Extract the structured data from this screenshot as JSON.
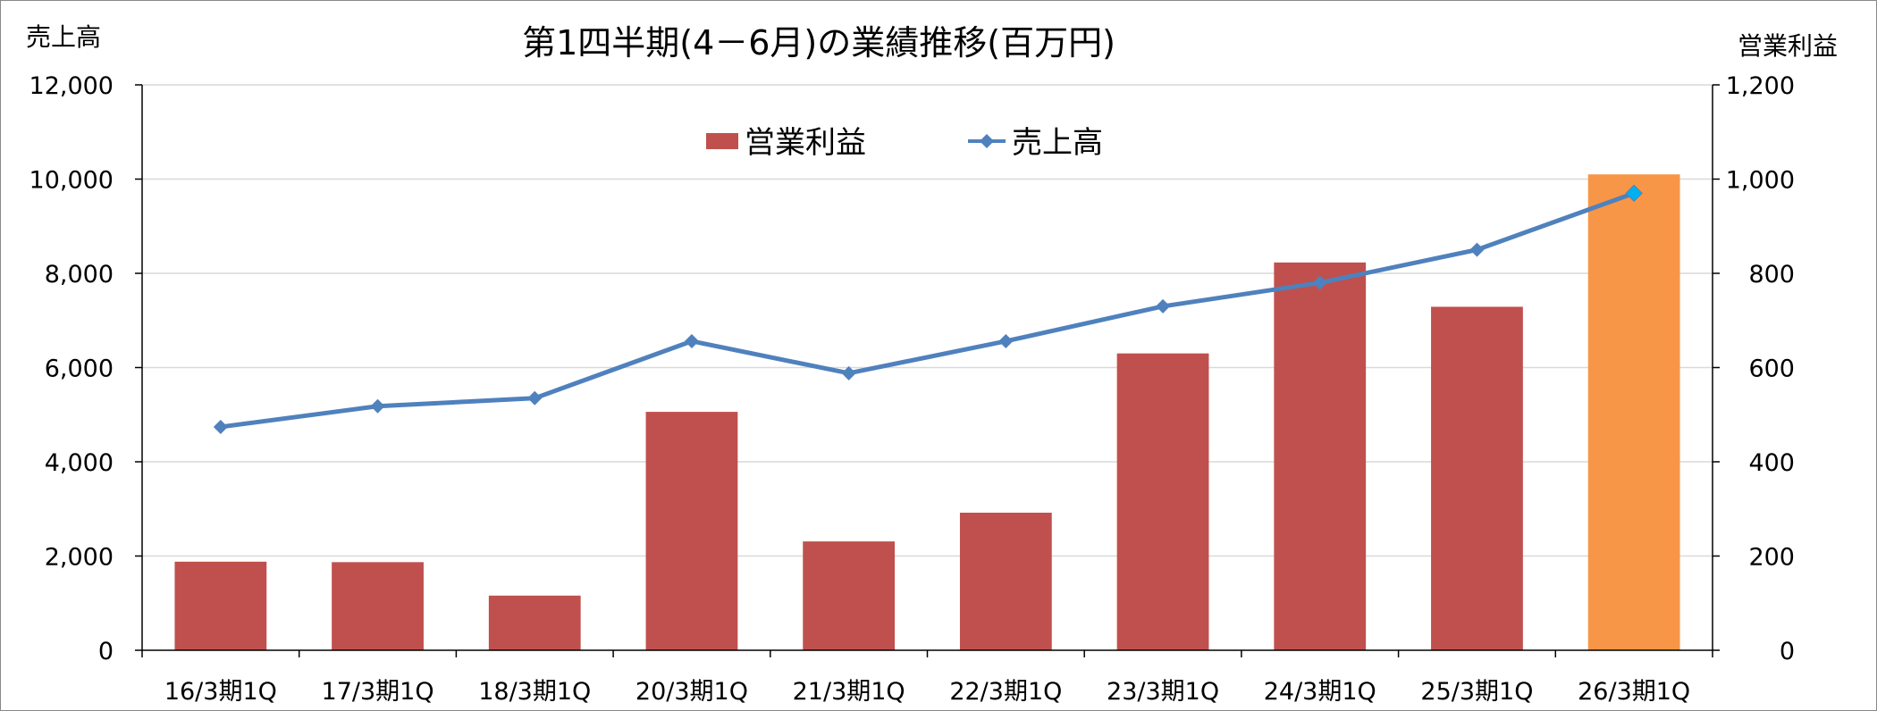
{
  "chart_data": {
    "type": "bar",
    "title": "第1四半期(4－6月)の業績推移(百万円)",
    "left_axis_title": "売上高",
    "right_axis_title": "営業利益",
    "categories": [
      "16/3期1Q",
      "17/3期1Q",
      "18/3期1Q",
      "20/3期1Q",
      "21/3期1Q",
      "22/3期1Q",
      "23/3期1Q",
      "24/3期1Q",
      "25/3期1Q",
      "26/3期1Q"
    ],
    "series": [
      {
        "name": "営業利益",
        "kind": "bar",
        "axis": "right",
        "color": "#c0504d",
        "highlight_color": "#f79646",
        "highlight_index": 9,
        "values": [
          188,
          187,
          116,
          506,
          231,
          292,
          630,
          823,
          729,
          1010
        ]
      },
      {
        "name": "売上高",
        "kind": "line",
        "axis": "left",
        "color": "#4f81bd",
        "marker": "diamond",
        "highlight_marker_color": "#00b0f0",
        "values": [
          4740,
          5180,
          5350,
          6560,
          5880,
          6560,
          7300,
          7800,
          8500,
          9700
        ]
      }
    ],
    "left_axis": {
      "min": 0,
      "max": 12000,
      "ticks": [
        "0",
        "2,000",
        "4,000",
        "6,000",
        "8,000",
        "10,000",
        "12,000"
      ]
    },
    "right_axis": {
      "min": 0,
      "max": 1200,
      "ticks": [
        "0",
        "200",
        "400",
        "600",
        "800",
        "1,000",
        "1,200"
      ]
    },
    "grid": true,
    "legend_position": "top-center"
  }
}
